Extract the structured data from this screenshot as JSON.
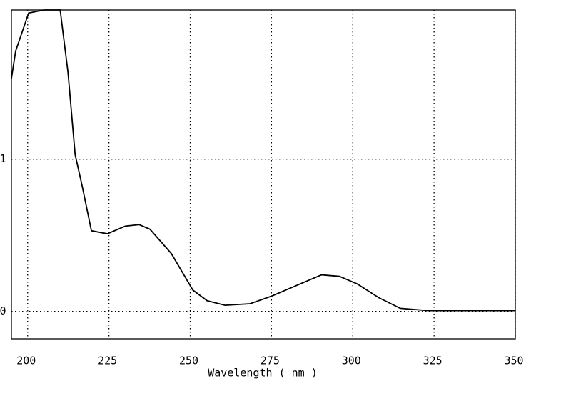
{
  "chart_data": {
    "type": "line",
    "xlabel": "Wavelength ( nm )",
    "x": [
      195,
      196.3,
      200.3,
      205,
      210,
      212.4,
      214.6,
      216.8,
      219.6,
      224.5,
      230,
      234.3,
      237.6,
      244.2,
      250.8,
      255.2,
      260.7,
      268.4,
      275,
      281.6,
      290.4,
      295.9,
      301.4,
      308,
      314.6,
      323.4,
      350
    ],
    "values": [
      1.53,
      1.71,
      1.96,
      1.98,
      1.98,
      1.57,
      1.03,
      0.82,
      0.53,
      0.51,
      0.56,
      0.57,
      0.54,
      0.38,
      0.14,
      0.07,
      0.04,
      0.05,
      0.1,
      0.16,
      0.24,
      0.23,
      0.18,
      0.09,
      0.02,
      0.005,
      0.005
    ],
    "color": "#000000",
    "xlim": [
      195,
      350
    ],
    "xticks": [
      200,
      225,
      250,
      275,
      300,
      325,
      350
    ],
    "ylim": [
      -0.18,
      1.98
    ],
    "yticks": [
      0,
      1
    ],
    "grid": true
  }
}
